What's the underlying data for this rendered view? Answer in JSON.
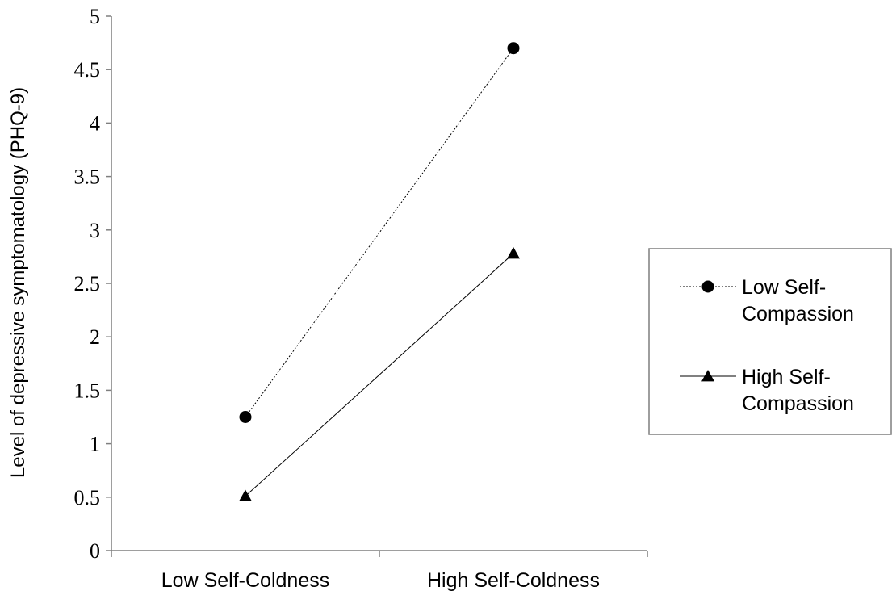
{
  "chart_data": {
    "type": "line",
    "categories": [
      "Low Self-Coldness",
      "High Self-Coldness"
    ],
    "ylabel": "Level of depressive symptomatology (PHQ-9)",
    "xlabel": "",
    "ylim": [
      0,
      5
    ],
    "yticks": [
      "0",
      "0.5",
      "1",
      "1.5",
      "2",
      "2.5",
      "3",
      "3.5",
      "4",
      "4.5",
      "5"
    ],
    "grid": false,
    "legend_position": "right",
    "series": [
      {
        "name": "Low Self-Compassion",
        "name_lines": [
          "Low Self-",
          "Compassion"
        ],
        "values": [
          1.25,
          4.7
        ],
        "marker": "circle",
        "line_style": "dotted",
        "color": "#000000"
      },
      {
        "name": "High Self-Compassion",
        "name_lines": [
          "High Self-",
          "Compassion"
        ],
        "values": [
          0.51,
          2.78
        ],
        "marker": "triangle",
        "line_style": "solid",
        "color": "#000000"
      }
    ]
  }
}
